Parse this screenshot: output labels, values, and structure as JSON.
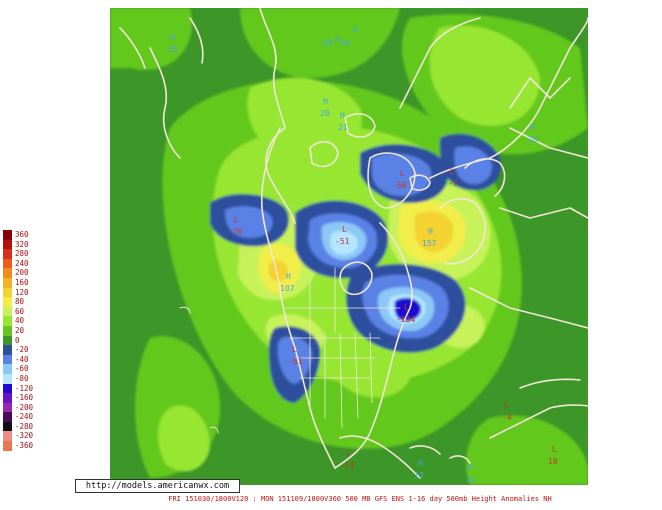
{
  "legend": {
    "entries": [
      {
        "label": "360",
        "color": "#8b0000"
      },
      {
        "label": "320",
        "color": "#b2120e"
      },
      {
        "label": "280",
        "color": "#d6301a"
      },
      {
        "label": "240",
        "color": "#f05a1a"
      },
      {
        "label": "200",
        "color": "#f08c1e"
      },
      {
        "label": "160",
        "color": "#f2b424"
      },
      {
        "label": "120",
        "color": "#f3d232"
      },
      {
        "label": "80",
        "color": "#f2ee48"
      },
      {
        "label": "60",
        "color": "#c8f25a"
      },
      {
        "label": "40",
        "color": "#96e632"
      },
      {
        "label": "20",
        "color": "#64c81e"
      },
      {
        "label": "0",
        "color": "#3c9628"
      },
      {
        "label": "-20",
        "color": "#2e4f9e"
      },
      {
        "label": "-40",
        "color": "#5a82e6"
      },
      {
        "label": "-60",
        "color": "#8cc8f5"
      },
      {
        "label": "-80",
        "color": "#b4e6ff"
      },
      {
        "label": "-120",
        "color": "#1e0ad2"
      },
      {
        "label": "-160",
        "color": "#6a14c8"
      },
      {
        "label": "-200",
        "color": "#9a28b4"
      },
      {
        "label": "-240",
        "color": "#4a0a5a"
      },
      {
        "label": "-280",
        "color": "#111111"
      },
      {
        "label": "-320",
        "color": "#f28c8c"
      },
      {
        "label": "-360",
        "color": "#e67850"
      }
    ]
  },
  "credit": "http://models.americanwx.com",
  "caption": "FRI 151030/1800V120 : MON 151109/1800V360   500 MB GFS ENS 1-16 day 500mb Height Anomalies NH",
  "centers": {
    "high": [
      {
        "letter": "H",
        "value": "107"
      },
      {
        "letter": "H",
        "value": "157"
      },
      {
        "letter": "H",
        "value": "20"
      },
      {
        "letter": "H",
        "value": "21"
      },
      {
        "letter": "H",
        "value": "19"
      },
      {
        "letter": "H",
        "value": "19"
      },
      {
        "letter": "H",
        "value": "26"
      },
      {
        "letter": "H",
        "value": "13"
      },
      {
        "letter": "H",
        "value": "11"
      },
      {
        "letter": "H",
        "value": "25"
      }
    ],
    "low": [
      {
        "letter": "L",
        "value": "-58"
      },
      {
        "letter": "L",
        "value": "-51"
      },
      {
        "letter": "L",
        "value": "-76"
      },
      {
        "letter": "L",
        "value": "-134"
      },
      {
        "letter": "L",
        "value": "-51"
      },
      {
        "letter": "L",
        "value": "-7"
      },
      {
        "letter": "L",
        "value": "-13"
      },
      {
        "letter": "L",
        "value": "10"
      },
      {
        "letter": "L",
        "value": "-4"
      }
    ]
  }
}
